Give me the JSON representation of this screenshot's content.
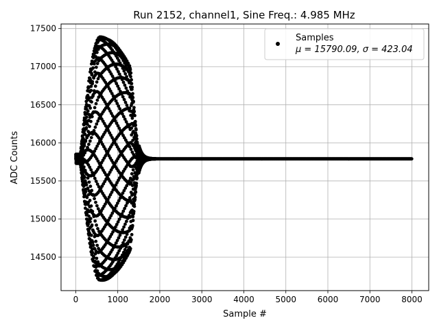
{
  "chart_data": {
    "type": "scatter",
    "title": "Run 2152, channel1, Sine Freq.: 4.985 MHz",
    "xlabel": "Sample #",
    "ylabel": "ADC Counts",
    "xlim": [
      -350,
      8400
    ],
    "ylim": [
      14060,
      17560
    ],
    "xticks": [
      0,
      1000,
      2000,
      3000,
      4000,
      5000,
      6000,
      7000,
      8000
    ],
    "yticks": [
      14500,
      15000,
      15500,
      16000,
      16500,
      17000,
      17500
    ],
    "grid": true,
    "legend_position": "top-right",
    "series": [
      {
        "name": "Samples",
        "marker": "circle",
        "color": "#000000",
        "points_description": "8000 samples: sine burst (freq 4.985 MHz, aliased) from ~sample 100 to ~1500 with envelope peaking ~1600 counts near sample 580, ringing down by ~1800, then flat at baseline",
        "baseline": 15790,
        "burst_start": 100,
        "burst_end": 1500,
        "peak_amplitude": 1600,
        "peak_sample": 580,
        "n_samples": 8000
      }
    ],
    "legend": {
      "label": "Samples",
      "stats": "μ = 15790.09, σ = 423.04"
    }
  }
}
